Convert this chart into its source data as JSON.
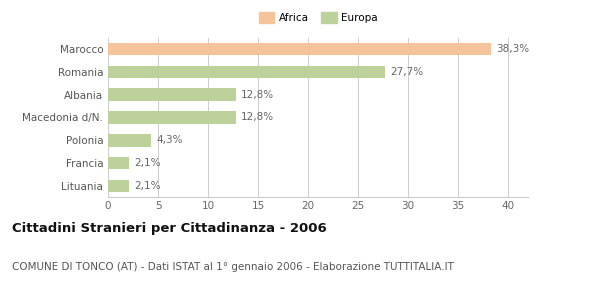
{
  "categories": [
    "Marocco",
    "Romania",
    "Albania",
    "Macedonia d/N.",
    "Polonia",
    "Francia",
    "Lituania"
  ],
  "values": [
    38.3,
    27.7,
    12.8,
    12.8,
    4.3,
    2.1,
    2.1
  ],
  "labels": [
    "38,3%",
    "27,7%",
    "12,8%",
    "12,8%",
    "4,3%",
    "2,1%",
    "2,1%"
  ],
  "colors": [
    "#f5c49a",
    "#bdd19a",
    "#bdd19a",
    "#bdd19a",
    "#bdd19a",
    "#bdd19a",
    "#bdd19a"
  ],
  "legend_items": [
    {
      "label": "Africa",
      "color": "#f5c49a"
    },
    {
      "label": "Europa",
      "color": "#bdd19a"
    }
  ],
  "xlim": [
    0,
    42
  ],
  "xticks": [
    0,
    5,
    10,
    15,
    20,
    25,
    30,
    35,
    40
  ],
  "title_bold": "Cittadini Stranieri per Cittadinanza - 2006",
  "subtitle": "COMUNE DI TONCO (AT) - Dati ISTAT al 1° gennaio 2006 - Elaborazione TUTTITALIA.IT",
  "bar_height": 0.55,
  "background_color": "#ffffff",
  "grid_color": "#cccccc",
  "label_fontsize": 7.5,
  "tick_fontsize": 7.5,
  "title_fontsize": 9.5,
  "subtitle_fontsize": 7.5
}
